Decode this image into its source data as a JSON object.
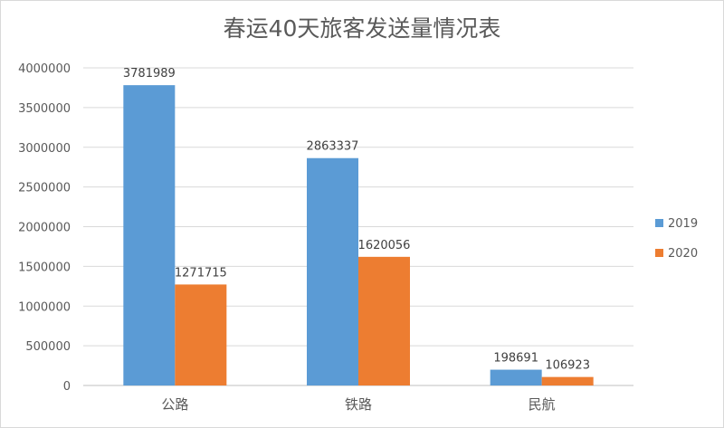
{
  "chart_data": {
    "type": "bar",
    "title": "春运40天旅客发送量情况表",
    "xlabel": "",
    "ylabel": "",
    "categories": [
      "公路",
      "铁路",
      "民航"
    ],
    "series": [
      {
        "name": "2019",
        "values": [
          3781989,
          2863337,
          198691
        ],
        "color": "#5b9bd5"
      },
      {
        "name": "2020",
        "values": [
          1271715,
          1620056,
          106923
        ],
        "color": "#ed7d31"
      }
    ],
    "yticks": [
      "0",
      "500000",
      "1000000",
      "1500000",
      "2000000",
      "2500000",
      "3000000",
      "3500000",
      "4000000"
    ],
    "ylim": [
      0,
      4000000
    ],
    "grid": true,
    "legend": "right"
  }
}
